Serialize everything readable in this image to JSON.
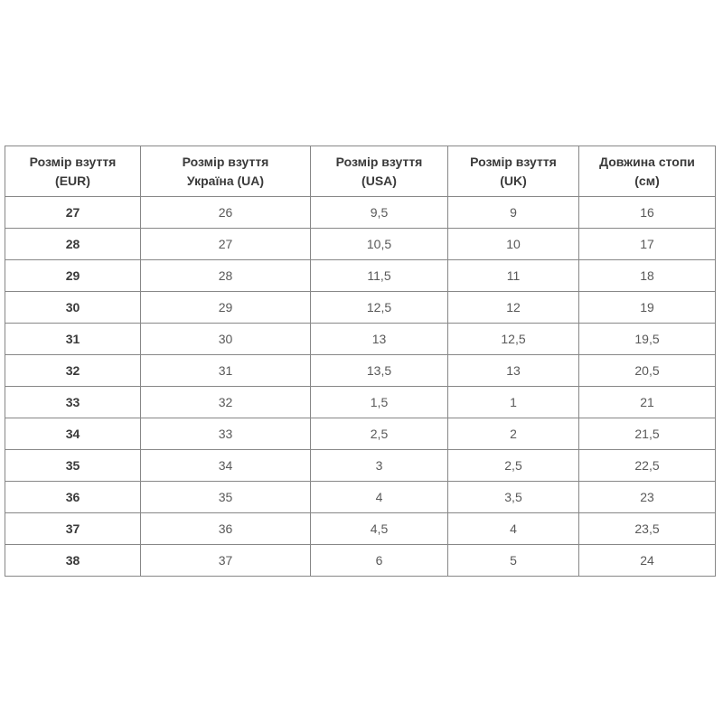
{
  "chart_data": {
    "type": "table",
    "title": "",
    "columns": [
      "Розмір взуття\n(EUR)",
      "Розмір взуття\nУкраїна (UA)",
      "Розмір взуття\n(USA)",
      "Розмір взуття\n(UK)",
      "Довжина стопи\n(см)"
    ],
    "rows": [
      [
        "27",
        "26",
        "9,5",
        "9",
        "16"
      ],
      [
        "28",
        "27",
        "10,5",
        "10",
        "17"
      ],
      [
        "29",
        "28",
        "11,5",
        "11",
        "18"
      ],
      [
        "30",
        "29",
        "12,5",
        "12",
        "19"
      ],
      [
        "31",
        "30",
        "13",
        "12,5",
        "19,5"
      ],
      [
        "32",
        "31",
        "13,5",
        "13",
        "20,5"
      ],
      [
        "33",
        "32",
        "1,5",
        "1",
        "21"
      ],
      [
        "34",
        "33",
        "2,5",
        "2",
        "21,5"
      ],
      [
        "35",
        "34",
        "3",
        "2,5",
        "22,5"
      ],
      [
        "36",
        "35",
        "4",
        "3,5",
        "23"
      ],
      [
        "37",
        "36",
        "4,5",
        "4",
        "23,5"
      ],
      [
        "38",
        "37",
        "6",
        "5",
        "24"
      ]
    ]
  },
  "colors": {
    "background": "#ffffff",
    "border": "#878787",
    "header_text": "#3a3a3a",
    "cell_text": "#595959",
    "eur_column_text": "#3a3a3a"
  }
}
